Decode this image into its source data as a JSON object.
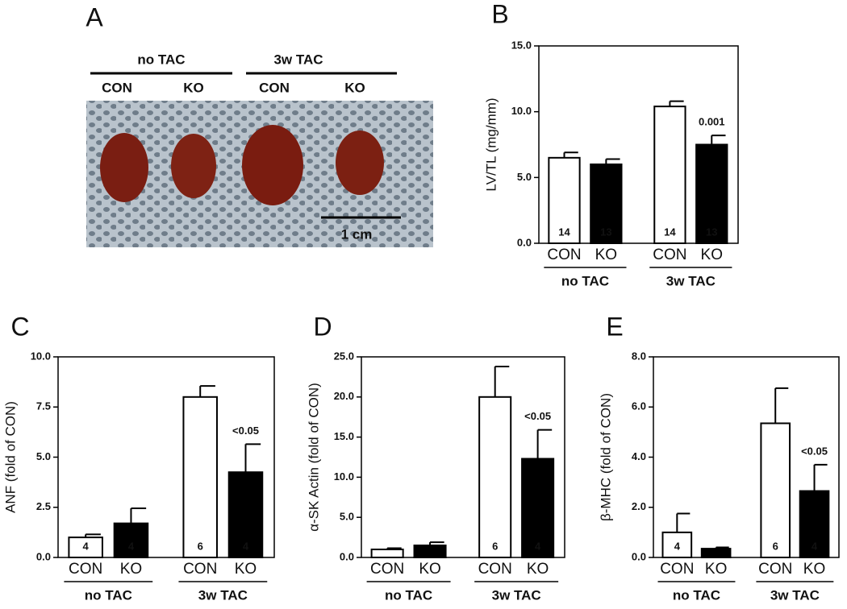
{
  "panel_a": {
    "label": "A",
    "groups": [
      "no TAC",
      "3w TAC"
    ],
    "conditions": [
      "CON",
      "KO",
      "CON",
      "KO"
    ],
    "scale_bar": "1 cm"
  },
  "chart_data": [
    {
      "type": "bar",
      "label": "B",
      "ylabel": "LV/TL (mg/mm)",
      "categories": [
        "CON",
        "KO",
        "CON",
        "KO"
      ],
      "groups": [
        "no TAC",
        "3w TAC"
      ],
      "values": [
        6.5,
        6.0,
        10.4,
        7.5
      ],
      "errors": [
        0.4,
        0.4,
        0.4,
        0.7
      ],
      "n": [
        14,
        13,
        14,
        13
      ],
      "value_annotations": [
        null,
        null,
        null,
        "0.001"
      ],
      "colors": [
        "#ffffff",
        "#000000",
        "#ffffff",
        "#000000"
      ],
      "ylim": [
        0,
        15
      ],
      "yticks": [
        {
          "value": 0,
          "label": "0.0"
        },
        {
          "value": 5,
          "label": "5.0"
        },
        {
          "value": 10,
          "label": "10.0"
        },
        {
          "value": 15,
          "label": "15.0"
        }
      ]
    },
    {
      "type": "bar",
      "label": "C",
      "ylabel": "ANF (fold of CON)",
      "categories": [
        "CON",
        "KO",
        "CON",
        "KO"
      ],
      "groups": [
        "no TAC",
        "3w TAC"
      ],
      "values": [
        1.0,
        1.7,
        8.0,
        4.25
      ],
      "errors": [
        0.15,
        0.75,
        0.55,
        1.4
      ],
      "n": [
        4,
        4,
        6,
        4
      ],
      "value_annotations": [
        null,
        null,
        null,
        "<0.05"
      ],
      "colors": [
        "#ffffff",
        "#000000",
        "#ffffff",
        "#000000"
      ],
      "ylim": [
        0,
        10
      ],
      "yticks": [
        {
          "value": 0,
          "label": "0.0"
        },
        2.5,
        {
          "value": 5,
          "label": "5.0"
        },
        7.5,
        {
          "value": 10,
          "label": "10.0"
        }
      ]
    },
    {
      "type": "bar",
      "label": "D",
      "ylabel": "α-SK Actin (fold of CON)",
      "categories": [
        "CON",
        "KO",
        "CON",
        "KO"
      ],
      "groups": [
        "no TAC",
        "3w TAC"
      ],
      "values": [
        1.0,
        1.5,
        20.0,
        12.3
      ],
      "errors": [
        0.15,
        0.4,
        3.8,
        3.6
      ],
      "n": [
        null,
        null,
        6,
        4
      ],
      "value_annotations": [
        null,
        null,
        null,
        "<0.05"
      ],
      "colors": [
        "#ffffff",
        "#000000",
        "#ffffff",
        "#000000"
      ],
      "ylim": [
        0,
        25
      ],
      "yticks": [
        {
          "value": 0,
          "label": "0.0"
        },
        {
          "value": 5,
          "label": "5.0"
        },
        {
          "value": 10,
          "label": "10.0"
        },
        {
          "value": 15,
          "label": "15.0"
        },
        {
          "value": 20,
          "label": "20.0"
        },
        {
          "value": 25,
          "label": "25.0"
        }
      ]
    },
    {
      "type": "bar",
      "label": "E",
      "ylabel": "β-MHC (fold of CON)",
      "categories": [
        "CON",
        "KO",
        "CON",
        "KO"
      ],
      "groups": [
        "no TAC",
        "3w TAC"
      ],
      "values": [
        1.0,
        0.35,
        5.35,
        2.65
      ],
      "errors": [
        0.75,
        0.05,
        1.4,
        1.05
      ],
      "n": [
        4,
        null,
        6,
        4
      ],
      "value_annotations": [
        null,
        null,
        null,
        "<0.05"
      ],
      "colors": [
        "#ffffff",
        "#000000",
        "#ffffff",
        "#000000"
      ],
      "ylim": [
        0,
        8
      ],
      "yticks": [
        {
          "value": 0,
          "label": "0.0"
        },
        {
          "value": 2,
          "label": "2.0"
        },
        {
          "value": 4,
          "label": "4.0"
        },
        {
          "value": 6,
          "label": "6.0"
        },
        {
          "value": 8,
          "label": "8.0"
        }
      ]
    }
  ]
}
